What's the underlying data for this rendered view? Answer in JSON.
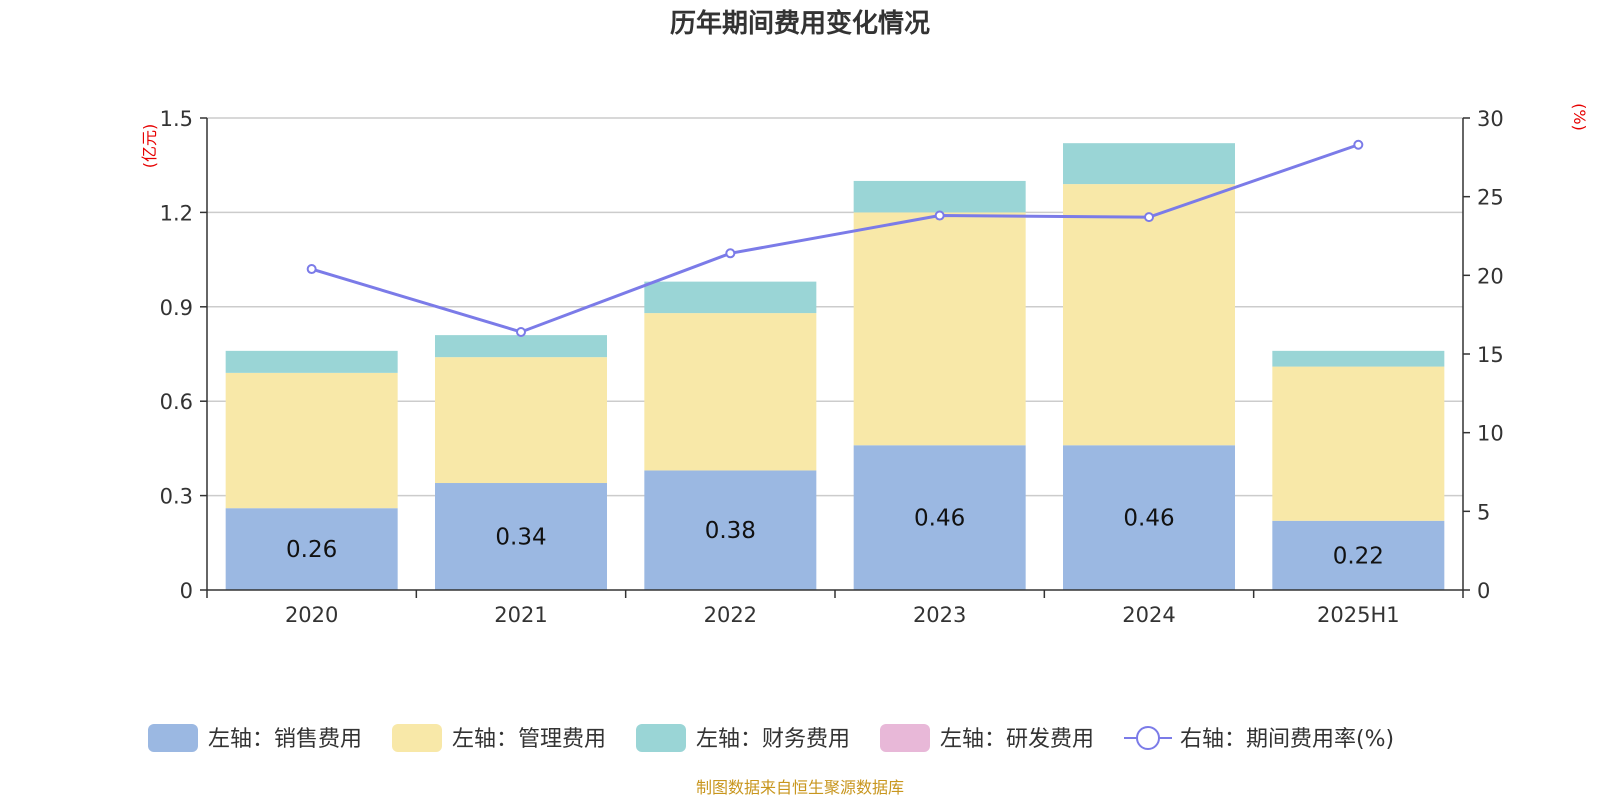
{
  "title": "历年期间费用变化情况",
  "source": "制图数据来自恒生聚源数据库",
  "chart_data": {
    "type": "bar",
    "stacked": true,
    "title": "历年期间费用变化情况",
    "categories": [
      "2020",
      "2021",
      "2022",
      "2023",
      "2024",
      "2025H1"
    ],
    "left_axis": {
      "unit": "(亿元)",
      "ticks": [
        "0",
        "0.3",
        "0.6",
        "0.9",
        "1.2",
        "1.5"
      ],
      "range": [
        0,
        1.5
      ]
    },
    "right_axis": {
      "unit": "(%)",
      "ticks": [
        "0",
        "5",
        "10",
        "15",
        "20",
        "25",
        "30"
      ],
      "range": [
        0,
        30
      ]
    },
    "series": [
      {
        "name": "左轴：销售费用",
        "type": "bar",
        "axis": "left",
        "color": "#9bb8e2",
        "values": [
          0.26,
          0.34,
          0.38,
          0.46,
          0.46,
          0.22
        ],
        "labels": [
          "0.26",
          "0.34",
          "0.38",
          "0.46",
          "0.46",
          "0.22"
        ]
      },
      {
        "name": "左轴：管理费用",
        "type": "bar",
        "axis": "left",
        "color": "#f8e8a8",
        "values": [
          0.43,
          0.4,
          0.5,
          0.74,
          0.83,
          0.49
        ]
      },
      {
        "name": "左轴：财务费用",
        "type": "bar",
        "axis": "left",
        "color": "#9ad5d6",
        "values": [
          0.07,
          0.07,
          0.1,
          0.1,
          0.13,
          0.05
        ]
      },
      {
        "name": "左轴：研发费用",
        "type": "bar",
        "axis": "left",
        "color": "#e8b8d8",
        "values": [
          0,
          0,
          0,
          0,
          0,
          0
        ]
      },
      {
        "name": "右轴：期间费用率(%)",
        "type": "line",
        "axis": "right",
        "color": "#7b7be8",
        "values": [
          20.4,
          16.4,
          21.4,
          23.8,
          23.7,
          28.3
        ]
      }
    ],
    "grid": true,
    "legend_position": "bottom"
  }
}
